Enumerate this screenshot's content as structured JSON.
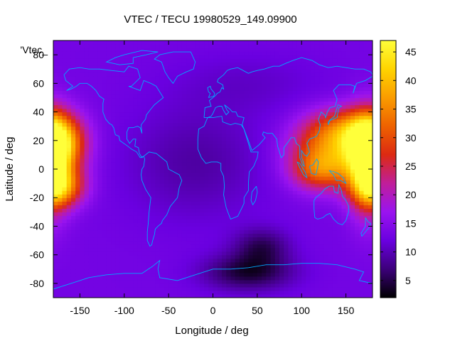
{
  "chart_data": {
    "type": "heatmap",
    "title": "VTEC / TECU 19980529_149.09900",
    "xlabel": "Longitude / deg",
    "ylabel": "Latitude / deg",
    "key_label": "'Vtec_",
    "xlim": [
      -180,
      180
    ],
    "ylim": [
      -90,
      90
    ],
    "xticks": [
      "-150",
      "-100",
      "-50",
      "0",
      "50",
      "100",
      "150"
    ],
    "yticks": [
      "80",
      "60",
      "40",
      "20",
      "0",
      "-20",
      "-40",
      "-60",
      "-80"
    ],
    "colorbar": {
      "range": [
        2,
        47
      ],
      "ticks": [
        "5",
        "10",
        "15",
        "20",
        "25",
        "30",
        "35",
        "40",
        "45"
      ],
      "palette": [
        "#000000",
        "#3c007a",
        "#6a00e0",
        "#9a14ef",
        "#c01e9a",
        "#dc2a12",
        "#ee6200",
        "#fa9c00",
        "#ffd400",
        "#ffff3a"
      ]
    },
    "coastline_color": "#00a8ff",
    "vtec_grid": {
      "lon_step": 5,
      "lat_step": 2.5,
      "background": 13,
      "features": [
        {
          "name": "pacific-crest",
          "lon": -178,
          "lat": 18,
          "sigma_lon": 22,
          "sigma_lat": 14,
          "amp": 33
        },
        {
          "name": "pacific-south",
          "lon": -175,
          "lat": -12,
          "sigma_lon": 20,
          "sigma_lat": 10,
          "amp": 24
        },
        {
          "name": "pacific-west-edge",
          "lon": -185,
          "lat": 2,
          "sigma_lon": 15,
          "sigma_lat": 24,
          "amp": 18
        },
        {
          "name": "asia-crest",
          "lon": 130,
          "lat": 12,
          "sigma_lon": 30,
          "sigma_lat": 15,
          "amp": 20
        },
        {
          "name": "asia-north",
          "lon": 148,
          "lat": 30,
          "sigma_lon": 28,
          "sigma_lat": 10,
          "amp": 11
        },
        {
          "name": "asia-equator",
          "lon": 120,
          "lat": -2,
          "sigma_lon": 22,
          "sigma_lat": 9,
          "amp": 10
        },
        {
          "name": "antarctic-hole-1",
          "lon": 40,
          "lat": -72,
          "sigma_lon": 35,
          "sigma_lat": 9,
          "amp": -9
        },
        {
          "name": "antarctic-hole-2",
          "lon": 55,
          "lat": -54,
          "sigma_lon": 22,
          "sigma_lat": 9,
          "amp": -7
        },
        {
          "name": "atlantic-low",
          "lon": -20,
          "lat": 5,
          "sigma_lon": 55,
          "sigma_lat": 28,
          "amp": -4
        },
        {
          "name": "eurasia-low",
          "lon": 40,
          "lat": 60,
          "sigma_lon": 60,
          "sigma_lat": 15,
          "amp": -2
        }
      ]
    }
  }
}
